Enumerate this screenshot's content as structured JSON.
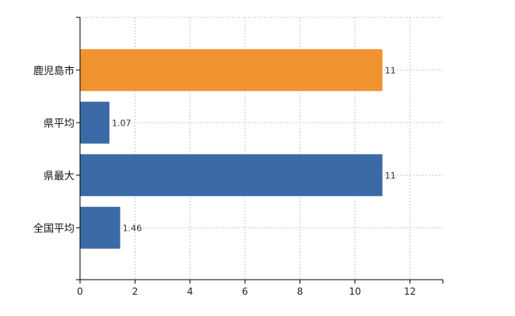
{
  "chart_data": {
    "type": "bar",
    "orientation": "horizontal",
    "categories": [
      "鹿児島市",
      "県平均",
      "県最大",
      "全国平均"
    ],
    "values": [
      11,
      1.07,
      11,
      1.46
    ],
    "value_labels": [
      "11",
      "1.07",
      "11",
      "1.46"
    ],
    "colors": [
      "#f0922f",
      "#3b6aa6",
      "#3b6aa6",
      "#3b6aa6"
    ],
    "xlim": [
      0,
      13.2
    ],
    "xticks": [
      0,
      2,
      4,
      6,
      8,
      10,
      12
    ],
    "grid": "dotted vertical and horizontal",
    "legend": "none",
    "title": "",
    "xlabel": "",
    "ylabel": ""
  }
}
